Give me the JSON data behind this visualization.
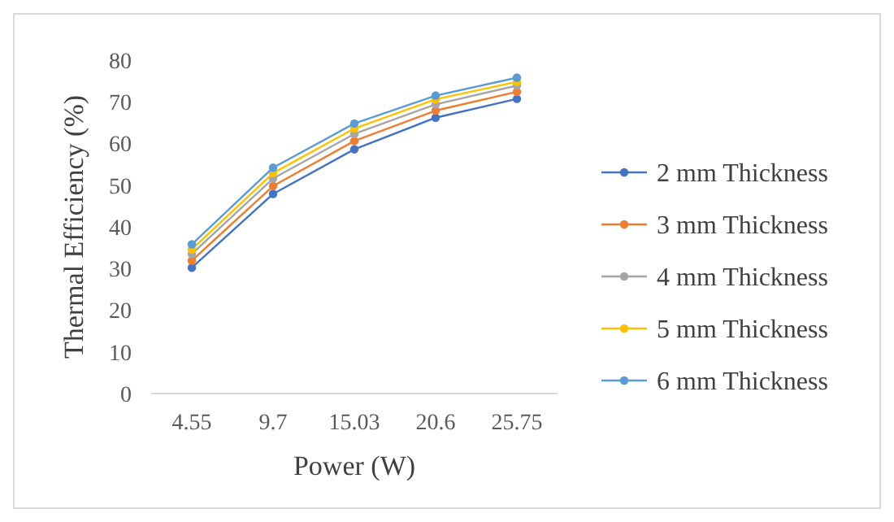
{
  "chart_data": {
    "type": "line",
    "xlabel": "Power (W)",
    "ylabel": "Thermal Efficiency (%)",
    "categories": [
      "4.55",
      "9.7",
      "15.03",
      "20.6",
      "25.75"
    ],
    "ylim": [
      0,
      80
    ],
    "yticks": [
      0,
      10,
      20,
      30,
      40,
      50,
      60,
      70,
      80
    ],
    "grid": false,
    "legend": "right",
    "marker": "circle",
    "line_style": "solid",
    "series": [
      {
        "name": "2 mm Thickness",
        "color": "#4472c4",
        "values": [
          30.2,
          47.9,
          58.6,
          66.2,
          70.7
        ]
      },
      {
        "name": "3 mm Thickness",
        "color": "#ed7d31",
        "values": [
          31.9,
          49.8,
          60.6,
          67.9,
          72.4
        ]
      },
      {
        "name": "4 mm Thickness",
        "color": "#a5a5a5",
        "values": [
          33.5,
          51.6,
          62.3,
          69.4,
          73.9
        ]
      },
      {
        "name": "5 mm Thickness",
        "color": "#ffc000",
        "values": [
          34.6,
          52.9,
          63.6,
          70.6,
          74.8
        ]
      },
      {
        "name": "6 mm Thickness",
        "color": "#5b9bd5",
        "values": [
          35.8,
          54.2,
          64.8,
          71.5,
          75.8
        ]
      }
    ]
  }
}
